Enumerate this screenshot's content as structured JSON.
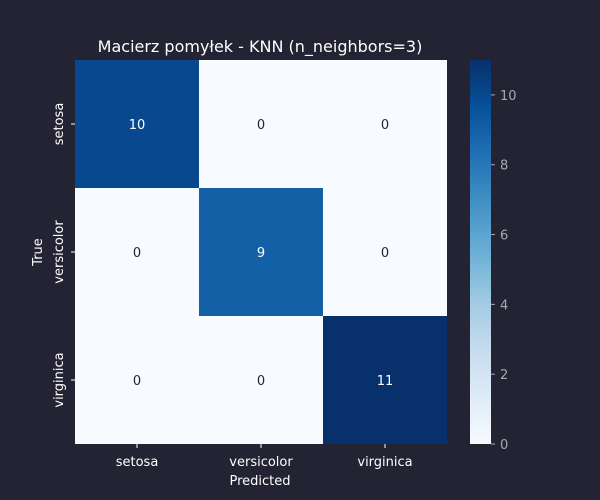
{
  "chart_data": {
    "type": "heatmap",
    "title": "Macierz pomyłek - KNN (n_neighbors=3)",
    "xlabel": "Predicted",
    "ylabel": "True",
    "x_categories": [
      "setosa",
      "versicolor",
      "virginica"
    ],
    "y_categories": [
      "setosa",
      "versicolor",
      "virginica"
    ],
    "values": [
      [
        10,
        0,
        0
      ],
      [
        0,
        9,
        0
      ],
      [
        0,
        0,
        11
      ]
    ],
    "colorbar": {
      "range": [
        0,
        11
      ],
      "ticks": [
        0,
        2,
        4,
        6,
        8,
        10
      ],
      "colormap": "Blues"
    },
    "colors": {
      "background": "#232334",
      "text_light": "#ffffff",
      "text_dark": "#262626",
      "colorbar_tick": "#a9a9b3"
    }
  }
}
